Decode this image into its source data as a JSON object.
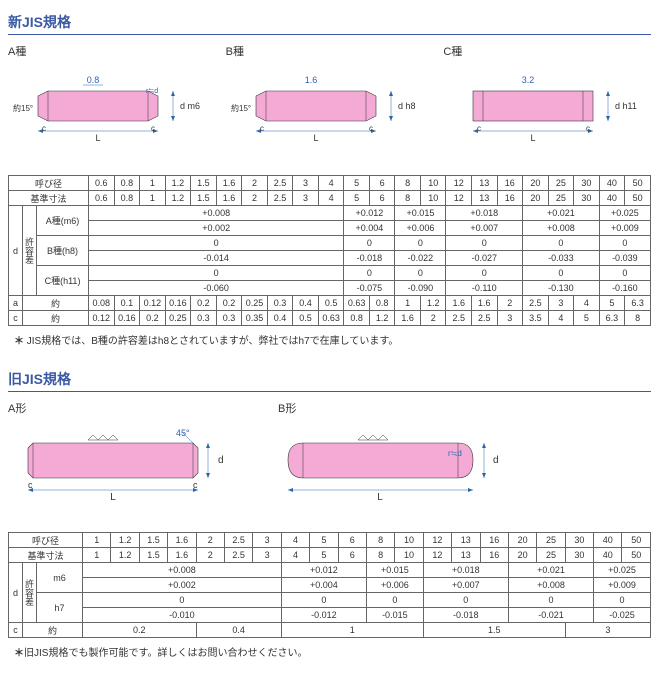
{
  "colors": {
    "heading": "#3b5aa5",
    "pin_fill": "#f5aad5",
    "pin_stroke": "#333",
    "dim_color": "#2a65b0",
    "border": "#666",
    "text": "#333"
  },
  "section1": {
    "title": "新JIS規格",
    "diagrams": {
      "A": {
        "label": "A種",
        "top_dim": "0.8",
        "side_text": "d m6",
        "angle": "約15°",
        "bottom_c": "c",
        "bottom_L": "L",
        "radius": "r≒d"
      },
      "B": {
        "label": "B種",
        "top_dim": "1.6",
        "side_text": "d h8",
        "angle": "約15°",
        "bottom_c": "c",
        "bottom_L": "L"
      },
      "C": {
        "label": "C種",
        "top_dim": "3.2",
        "side_text": "d h11",
        "bottom_c": "c",
        "bottom_L": "L"
      }
    },
    "table": {
      "row_yobikei_label": "呼び径",
      "row_yobikei": [
        "0.6",
        "0.8",
        "1",
        "1.2",
        "1.5",
        "1.6",
        "2",
        "2.5",
        "3",
        "4",
        "5",
        "6",
        "8",
        "10",
        "12",
        "13",
        "16",
        "20",
        "25",
        "30",
        "40",
        "50"
      ],
      "row_kijun_label": "基準寸法",
      "row_kijun": [
        "0.6",
        "0.8",
        "1",
        "1.2",
        "1.5",
        "1.6",
        "2",
        "2.5",
        "3",
        "4",
        "5",
        "6",
        "8",
        "10",
        "12",
        "13",
        "16",
        "20",
        "25",
        "30",
        "40",
        "50"
      ],
      "d_label": "d",
      "kyoyosa_label": "許容差",
      "rows_tolerance": [
        {
          "label": "A種(m6)",
          "groups": [
            {
              "span": 10,
              "upper": "+0.008",
              "lower": "+0.002"
            },
            {
              "span": 2,
              "upper": "+0.012",
              "lower": "+0.004"
            },
            {
              "span": 2,
              "upper": "+0.015",
              "lower": "+0.006"
            },
            {
              "span": 3,
              "upper": "+0.018",
              "lower": "+0.007"
            },
            {
              "span": 3,
              "upper": "+0.021",
              "lower": "+0.008"
            },
            {
              "span": 2,
              "upper": "+0.025",
              "lower": "+0.009"
            }
          ]
        },
        {
          "label": "B種(h8)",
          "groups": [
            {
              "span": 10,
              "upper": "0",
              "lower": "-0.014"
            },
            {
              "span": 2,
              "upper": "0",
              "lower": "-0.018"
            },
            {
              "span": 2,
              "upper": "0",
              "lower": "-0.022"
            },
            {
              "span": 3,
              "upper": "0",
              "lower": "-0.027"
            },
            {
              "span": 3,
              "upper": "0",
              "lower": "-0.033"
            },
            {
              "span": 2,
              "upper": "0",
              "lower": "-0.039"
            }
          ]
        },
        {
          "label": "C種(h11)",
          "groups": [
            {
              "span": 10,
              "upper": "0",
              "lower": "-0.060"
            },
            {
              "span": 2,
              "upper": "0",
              "lower": "-0.075"
            },
            {
              "span": 2,
              "upper": "0",
              "lower": "-0.090"
            },
            {
              "span": 3,
              "upper": "0",
              "lower": "-0.110"
            },
            {
              "span": 3,
              "upper": "0",
              "lower": "-0.130"
            },
            {
              "span": 2,
              "upper": "0",
              "lower": "-0.160"
            }
          ]
        }
      ],
      "row_a_label": "a",
      "row_a_about": "約",
      "row_a": [
        "0.08",
        "0.1",
        "0.12",
        "0.16",
        "0.2",
        "0.2",
        "0.25",
        "0.3",
        "0.4",
        "0.5",
        "0.63",
        "0.8",
        "1",
        "1.2",
        "1.6",
        "1.6",
        "2",
        "2.5",
        "3",
        "4",
        "5",
        "6.3"
      ],
      "row_c_label": "c",
      "row_c_about": "約",
      "row_c": [
        "0.12",
        "0.16",
        "0.2",
        "0.25",
        "0.3",
        "0.3",
        "0.35",
        "0.4",
        "0.5",
        "0.63",
        "0.8",
        "1.2",
        "1.6",
        "2",
        "2.5",
        "2.5",
        "3",
        "3.5",
        "4",
        "5",
        "6.3",
        "8"
      ]
    },
    "note": "JIS規格では、B種の許容差はh8とされていますが、弊社ではh7で在庫しています。"
  },
  "section2": {
    "title": "旧JIS規格",
    "diagrams": {
      "A": {
        "label": "A形",
        "angle": "45°",
        "side_text": "d",
        "bottom_c": "c",
        "bottom_L": "L"
      },
      "B": {
        "label": "B形",
        "side_text": "d",
        "bottom_L": "L",
        "radius": "r≒d"
      }
    },
    "table": {
      "row_yobikei_label": "呼び径",
      "row_yobikei": [
        "1",
        "1.2",
        "1.5",
        "1.6",
        "2",
        "2.5",
        "3",
        "4",
        "5",
        "6",
        "8",
        "10",
        "12",
        "13",
        "16",
        "20",
        "25",
        "30",
        "40",
        "50"
      ],
      "row_kijun_label": "基準寸法",
      "row_kijun": [
        "1",
        "1.2",
        "1.5",
        "1.6",
        "2",
        "2.5",
        "3",
        "4",
        "5",
        "6",
        "8",
        "10",
        "12",
        "13",
        "16",
        "20",
        "25",
        "30",
        "40",
        "50"
      ],
      "d_label": "d",
      "kyoyosa_label": "許容差",
      "rows_tolerance": [
        {
          "label": "m6",
          "groups": [
            {
              "span": 7,
              "upper": "+0.008",
              "lower": "+0.002"
            },
            {
              "span": 3,
              "upper": "+0.012",
              "lower": "+0.004"
            },
            {
              "span": 2,
              "upper": "+0.015",
              "lower": "+0.006"
            },
            {
              "span": 3,
              "upper": "+0.018",
              "lower": "+0.007"
            },
            {
              "span": 3,
              "upper": "+0.021",
              "lower": "+0.008"
            },
            {
              "span": 2,
              "upper": "+0.025",
              "lower": "+0.009"
            }
          ]
        },
        {
          "label": "h7",
          "groups": [
            {
              "span": 7,
              "upper": "0",
              "lower": "-0.010"
            },
            {
              "span": 3,
              "upper": "0",
              "lower": "-0.012"
            },
            {
              "span": 2,
              "upper": "0",
              "lower": "-0.015"
            },
            {
              "span": 3,
              "upper": "0",
              "lower": "-0.018"
            },
            {
              "span": 3,
              "upper": "0",
              "lower": "-0.021"
            },
            {
              "span": 2,
              "upper": "0",
              "lower": "-0.025"
            }
          ]
        }
      ],
      "row_c_label": "c",
      "row_c_about": "約",
      "row_c_groups": [
        {
          "span": 4,
          "val": "0.2"
        },
        {
          "span": 3,
          "val": "0.4"
        },
        {
          "span": 5,
          "val": "1"
        },
        {
          "span": 5,
          "val": "1.5"
        },
        {
          "span": 3,
          "val": "3"
        }
      ]
    },
    "note": "旧JIS規格でも製作可能です。詳しくはお問い合わせください。"
  }
}
